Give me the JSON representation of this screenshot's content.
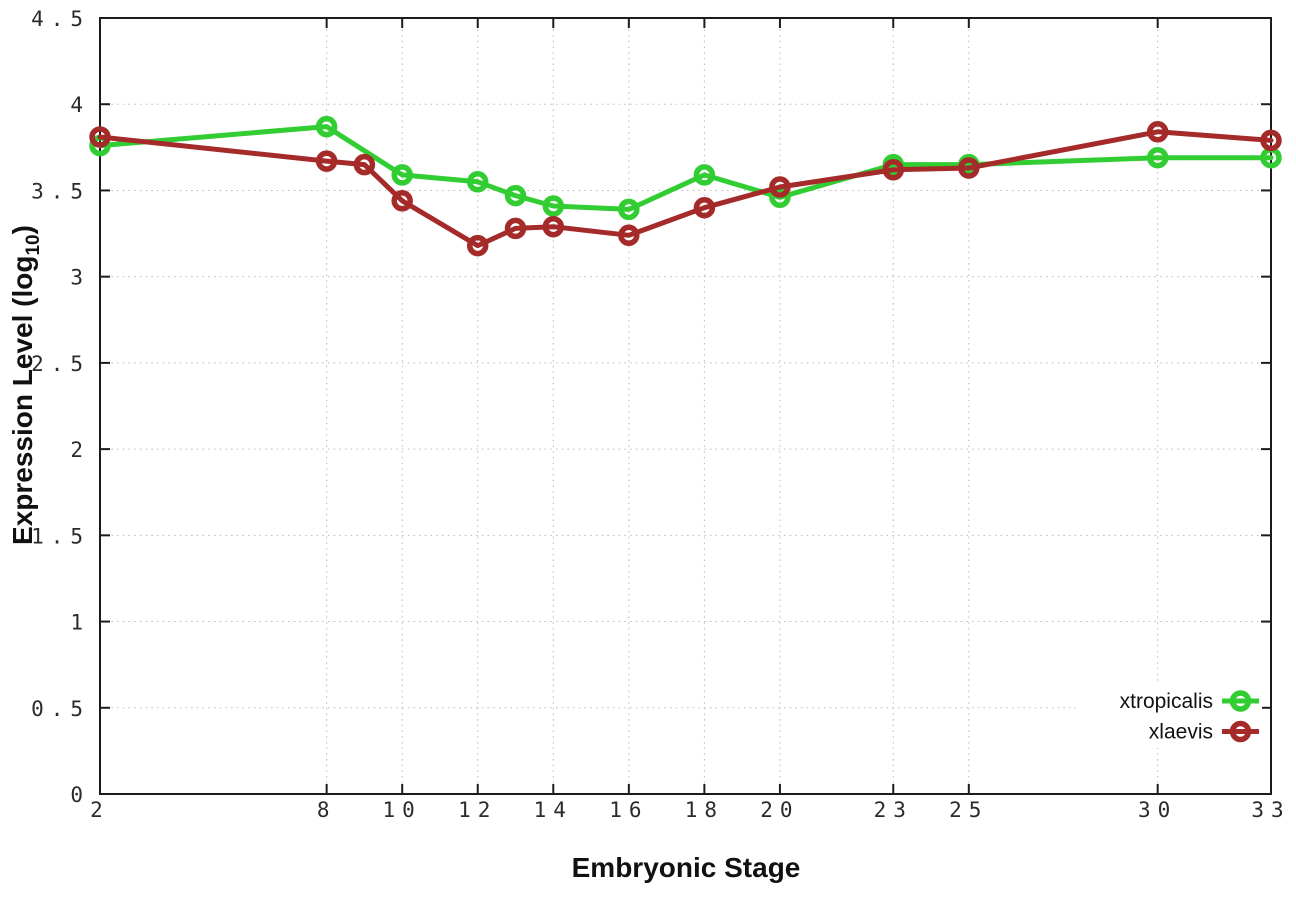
{
  "chart_data": {
    "type": "line",
    "title": "",
    "xlabel": "Embryonic Stage",
    "ylabel": "Expression Level (log10)",
    "ylabel_parts": {
      "main": "Expression Level (log",
      "sub": "10",
      "suffix": ")"
    },
    "xlim": [
      2,
      33
    ],
    "ylim": [
      0,
      4.5
    ],
    "xticks": [
      2,
      8,
      10,
      12,
      14,
      16,
      18,
      20,
      23,
      25,
      30,
      33
    ],
    "xtick_labels": [
      "2",
      "8",
      "10",
      "12",
      "14",
      "16",
      "18",
      "20",
      "23",
      "25",
      "30",
      "33"
    ],
    "yticks": [
      0,
      0.5,
      1,
      1.5,
      2,
      2.5,
      3,
      3.5,
      4,
      4.5
    ],
    "ytick_labels": [
      "0",
      "0.5",
      "1",
      "1.5",
      "2",
      "2.5",
      "3",
      "3.5",
      "4",
      "4.5"
    ],
    "grid": true,
    "grid_style": "dotted",
    "legend": {
      "position": "bottom-right",
      "entries": [
        "xtropicalis",
        "xlaevis"
      ]
    },
    "colors": {
      "axis": "#1c1c1c",
      "grid": "#b8b8b8",
      "tick_label": "#2b2b2b",
      "xtropicalis": "#32CD32",
      "xlaevis": "#A52A2A"
    },
    "series": [
      {
        "name": "xtropicalis",
        "color": "#32CD32",
        "x": [
          2,
          8,
          10,
          12,
          13,
          14,
          16,
          18,
          20,
          23,
          25,
          30,
          33
        ],
        "y": [
          3.76,
          3.87,
          3.59,
          3.55,
          3.47,
          3.41,
          3.39,
          3.59,
          3.46,
          3.65,
          3.65,
          3.69,
          3.69
        ]
      },
      {
        "name": "xlaevis",
        "color": "#A52A2A",
        "x": [
          2,
          8,
          9,
          10,
          12,
          13,
          14,
          16,
          18,
          20,
          23,
          25,
          30,
          33
        ],
        "y": [
          3.81,
          3.67,
          3.65,
          3.44,
          3.18,
          3.28,
          3.29,
          3.24,
          3.4,
          3.52,
          3.62,
          3.63,
          3.84,
          3.79
        ]
      }
    ]
  }
}
